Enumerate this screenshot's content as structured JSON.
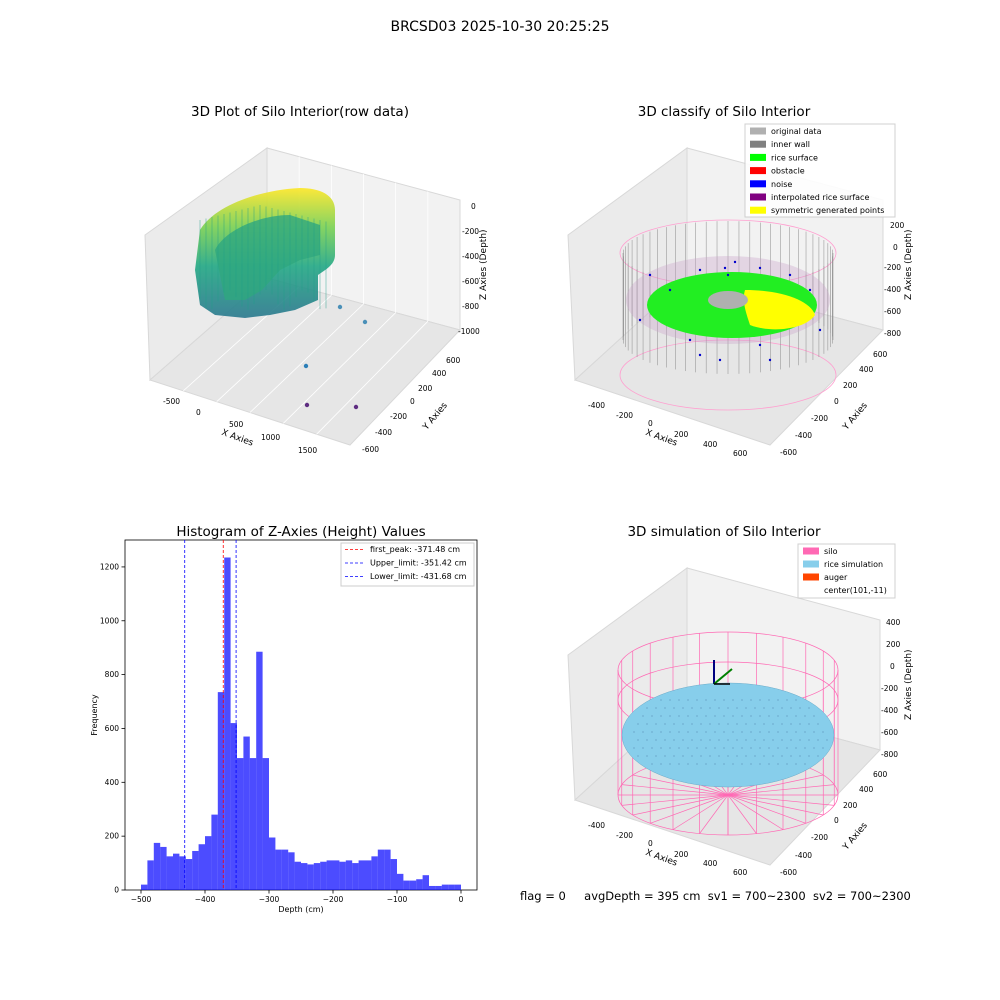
{
  "figure_title": "BRCSD03 2025-10-30 20:25:25",
  "footer": {
    "flag": "flag = 0",
    "avg_depth": "avgDepth = 395 cm",
    "sv1": "sv1 = 700~2300",
    "sv2": "sv2 = 700~2300"
  },
  "chart_data": [
    {
      "type": "scatter",
      "title": "3D Plot of Silo Interior(row data)",
      "xlabel": "X Axies",
      "ylabel": "Y Axies",
      "zlabel": "Z Axies (Depth)",
      "x_ticks": [
        "-500",
        "0",
        "500",
        "1000",
        "1500"
      ],
      "y_ticks": [
        "-600",
        "-400",
        "-200",
        "0",
        "200",
        "400",
        "600"
      ],
      "z_ticks": [
        "0",
        "-200",
        "-400",
        "-600",
        "-800",
        "-1000"
      ],
      "colormap": "viridis",
      "outlier_points": [
        {
          "x": 1300,
          "y": 600,
          "z": -750
        },
        {
          "x": 1500,
          "y": 500,
          "z": -850
        },
        {
          "x": 900,
          "y": 300,
          "z": -900
        },
        {
          "x": 900,
          "y": -100,
          "z": -1000
        },
        {
          "x": 1300,
          "y": -300,
          "z": -1000
        }
      ]
    },
    {
      "type": "scatter",
      "title": "3D classify of Silo Interior",
      "xlabel": "X Axies",
      "ylabel": "Y Axies",
      "zlabel": "Z Axies (Depth)",
      "x_ticks": [
        "-400",
        "-200",
        "0",
        "200",
        "400",
        "600"
      ],
      "y_ticks": [
        "-600",
        "-400",
        "-200",
        "0",
        "200",
        "400",
        "600"
      ],
      "z_ticks": [
        "200",
        "0",
        "-200",
        "-400",
        "-600",
        "-800"
      ],
      "legend_position": "top-right",
      "legend": [
        {
          "label": "original data",
          "color": "#b0b0b0"
        },
        {
          "label": "inner wall",
          "color": "#808080"
        },
        {
          "label": "rice surface",
          "color": "#00ff00"
        },
        {
          "label": "obstacle",
          "color": "#ff0000"
        },
        {
          "label": "noise",
          "color": "#0000ff"
        },
        {
          "label": "interpolated rice surface",
          "color": "#800080"
        },
        {
          "label": "symmetric generated points",
          "color": "#ffff00"
        }
      ]
    },
    {
      "type": "bar",
      "title": "Histogram of Z-Axies (Height) Values",
      "xlabel": "Depth (cm)",
      "ylabel": "Frequency",
      "xlim": [
        -525,
        25
      ],
      "ylim": [
        0,
        1300
      ],
      "x_ticks": [
        -500,
        -400,
        -300,
        -200,
        -100,
        0
      ],
      "y_ticks": [
        0,
        200,
        400,
        600,
        800,
        1000,
        1200
      ],
      "bar_color": "#0000ff",
      "bins": [
        {
          "x0": -500,
          "x1": -490,
          "count": 20
        },
        {
          "x0": -490,
          "x1": -480,
          "count": 110
        },
        {
          "x0": -480,
          "x1": -470,
          "count": 175
        },
        {
          "x0": -470,
          "x1": -460,
          "count": 160
        },
        {
          "x0": -460,
          "x1": -450,
          "count": 125
        },
        {
          "x0": -450,
          "x1": -440,
          "count": 135
        },
        {
          "x0": -440,
          "x1": -430,
          "count": 125
        },
        {
          "x0": -430,
          "x1": -420,
          "count": 115
        },
        {
          "x0": -420,
          "x1": -410,
          "count": 145
        },
        {
          "x0": -410,
          "x1": -400,
          "count": 170
        },
        {
          "x0": -400,
          "x1": -390,
          "count": 200
        },
        {
          "x0": -390,
          "x1": -380,
          "count": 280
        },
        {
          "x0": -380,
          "x1": -370,
          "count": 735
        },
        {
          "x0": -370,
          "x1": -360,
          "count": 1235
        },
        {
          "x0": -360,
          "x1": -350,
          "count": 620
        },
        {
          "x0": -350,
          "x1": -340,
          "count": 490
        },
        {
          "x0": -340,
          "x1": -330,
          "count": 570
        },
        {
          "x0": -330,
          "x1": -320,
          "count": 490
        },
        {
          "x0": -320,
          "x1": -310,
          "count": 885
        },
        {
          "x0": -310,
          "x1": -300,
          "count": 490
        },
        {
          "x0": -300,
          "x1": -290,
          "count": 195
        },
        {
          "x0": -290,
          "x1": -280,
          "count": 150
        },
        {
          "x0": -280,
          "x1": -270,
          "count": 150
        },
        {
          "x0": -270,
          "x1": -260,
          "count": 140
        },
        {
          "x0": -260,
          "x1": -250,
          "count": 105
        },
        {
          "x0": -250,
          "x1": -240,
          "count": 100
        },
        {
          "x0": -240,
          "x1": -230,
          "count": 95
        },
        {
          "x0": -230,
          "x1": -220,
          "count": 100
        },
        {
          "x0": -220,
          "x1": -210,
          "count": 105
        },
        {
          "x0": -210,
          "x1": -200,
          "count": 110
        },
        {
          "x0": -200,
          "x1": -190,
          "count": 110
        },
        {
          "x0": -190,
          "x1": -180,
          "count": 105
        },
        {
          "x0": -180,
          "x1": -170,
          "count": 110
        },
        {
          "x0": -170,
          "x1": -160,
          "count": 100
        },
        {
          "x0": -160,
          "x1": -150,
          "count": 110
        },
        {
          "x0": -150,
          "x1": -140,
          "count": 110
        },
        {
          "x0": -140,
          "x1": -130,
          "count": 125
        },
        {
          "x0": -130,
          "x1": -120,
          "count": 150
        },
        {
          "x0": -120,
          "x1": -110,
          "count": 150
        },
        {
          "x0": -110,
          "x1": -100,
          "count": 115
        },
        {
          "x0": -100,
          "x1": -90,
          "count": 60
        },
        {
          "x0": -90,
          "x1": -80,
          "count": 35
        },
        {
          "x0": -80,
          "x1": -70,
          "count": 35
        },
        {
          "x0": -70,
          "x1": -60,
          "count": 40
        },
        {
          "x0": -60,
          "x1": -50,
          "count": 55
        },
        {
          "x0": -50,
          "x1": -40,
          "count": 15
        },
        {
          "x0": -40,
          "x1": -30,
          "count": 15
        },
        {
          "x0": -30,
          "x1": -20,
          "count": 20
        },
        {
          "x0": -20,
          "x1": -10,
          "count": 20
        },
        {
          "x0": -10,
          "x1": 0,
          "count": 20
        }
      ],
      "vlines": [
        {
          "label": "first_peak: -371.48 cm",
          "x": -371.48,
          "color": "#ff0000"
        },
        {
          "label": "Upper_limit: -351.42 cm",
          "x": -351.42,
          "color": "#0000ff"
        },
        {
          "label": "Lower_limit: -431.68 cm",
          "x": -431.68,
          "color": "#0000ff"
        }
      ],
      "legend_position": "top-right"
    },
    {
      "type": "scatter",
      "title": "3D simulation of Silo Interior",
      "xlabel": "X Axies",
      "ylabel": "Y Axies",
      "zlabel": "Z Axies (Depth)",
      "x_ticks": [
        "-400",
        "-200",
        "0",
        "200",
        "400",
        "600"
      ],
      "y_ticks": [
        "-600",
        "-400",
        "-200",
        "0",
        "200",
        "400",
        "600"
      ],
      "z_ticks": [
        "400",
        "200",
        "0",
        "-200",
        "-400",
        "-600",
        "-800"
      ],
      "legend_position": "top-right",
      "legend": [
        {
          "label": "silo",
          "color": "#ff69b4"
        },
        {
          "label": "rice simulation",
          "color": "#87ceeb"
        },
        {
          "label": "auger",
          "color": "#ff4500"
        },
        {
          "label": "center(101,-11)",
          "color": ""
        }
      ]
    }
  ]
}
